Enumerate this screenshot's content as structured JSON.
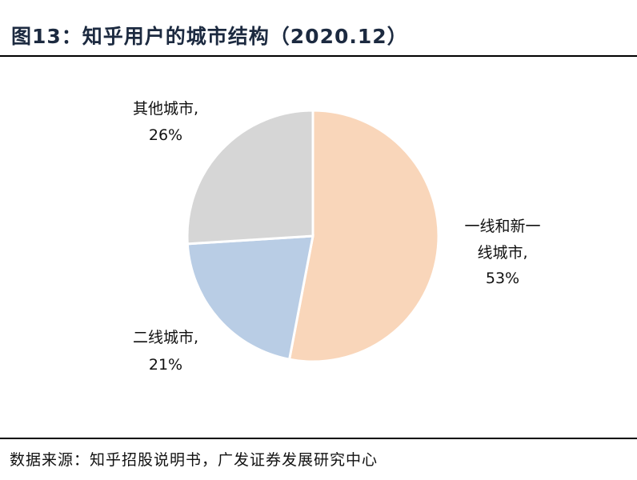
{
  "title": "图13：知乎用户的城市结构（2020.12）",
  "source": "数据来源：知乎招股说明书，广发证券发展研究中心",
  "chart_data": {
    "type": "pie",
    "start_angle": "12 o'clock",
    "direction": "clockwise",
    "slices": [
      {
        "label_lines": [
          "一线和新一",
          "线城市,"
        ],
        "value_label": "53%",
        "value": 53,
        "color": "#f9d6ba"
      },
      {
        "label_lines": [
          "二线城市,"
        ],
        "value_label": "21%",
        "value": 21,
        "color": "#b9cde5"
      },
      {
        "label_lines": [
          "其他城市,"
        ],
        "value_label": "26%",
        "value": 26,
        "color": "#d6d6d6"
      }
    ]
  }
}
